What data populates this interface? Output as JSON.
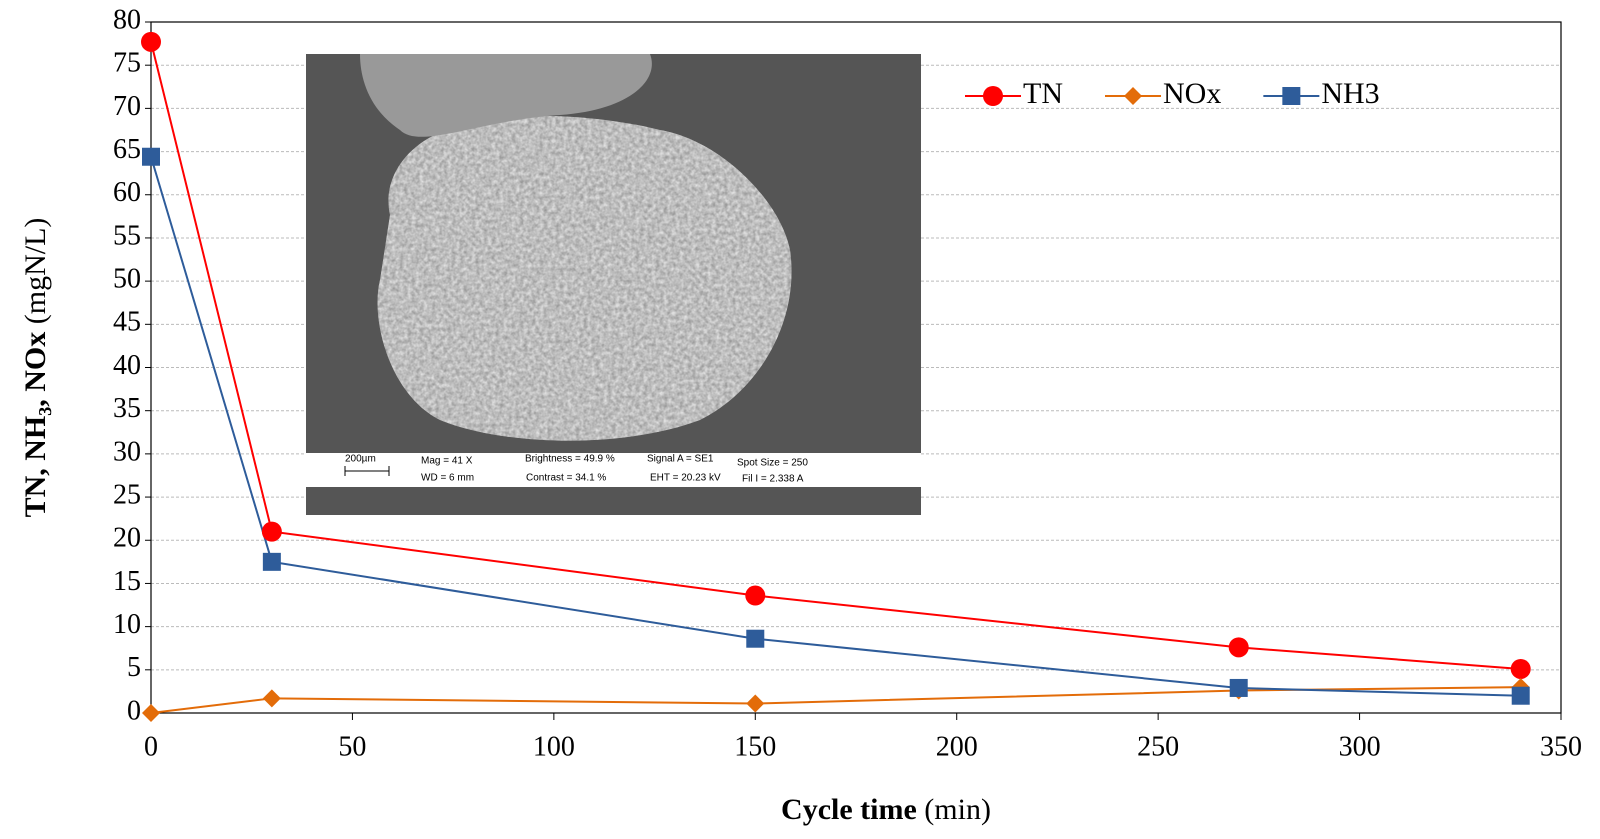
{
  "chart_data": {
    "type": "line",
    "y_label": "TN, NH₃, NOx",
    "y_unit": "(mgN/L)",
    "x_label": "Cycle time",
    "x_unit": "(min)",
    "x": [
      0,
      30,
      150,
      270,
      340
    ],
    "series": [
      {
        "name": "TN",
        "color": "#ff0000",
        "marker": "circle",
        "values": [
          77.7,
          21,
          13.6,
          7.6,
          5.1
        ]
      },
      {
        "name": "NOx",
        "color": "#e36c09",
        "marker": "diamond",
        "values": [
          0,
          1.7,
          1.1,
          2.6,
          3.0
        ]
      },
      {
        "name": "NH3",
        "color": "#2e5c9a",
        "marker": "square",
        "values": [
          64.4,
          17.5,
          8.6,
          2.9,
          2.0
        ]
      }
    ],
    "xlim": [
      0,
      350
    ],
    "xticks": [
      0,
      50,
      100,
      150,
      200,
      250,
      300,
      350
    ],
    "ylim": [
      0,
      80
    ],
    "yticks": [
      0,
      5,
      10,
      15,
      20,
      25,
      30,
      35,
      40,
      45,
      50,
      55,
      60,
      65,
      70,
      75,
      80
    ],
    "grid": true,
    "legend": "top-right"
  },
  "inset": {
    "scale_bar": "200µm",
    "info": [
      "Mag =    41 X",
      "WD =    6 mm",
      "Brightness =  49.9 %",
      "Contrast =  34.1 %",
      "Signal A = SE1",
      "EHT = 20.23 kV",
      "Spot Size =  250",
      "Fil I =  2.338 A"
    ]
  }
}
